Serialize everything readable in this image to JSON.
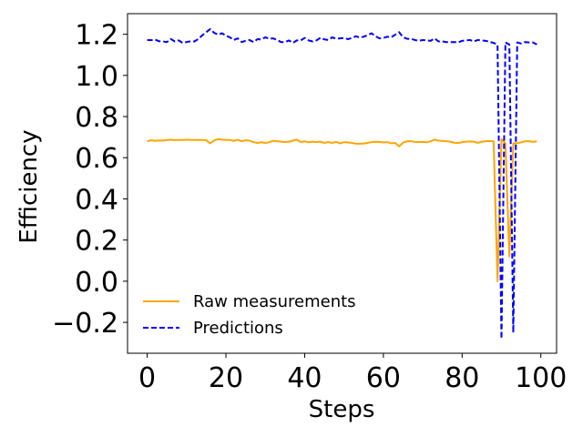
{
  "chart_data": {
    "type": "line",
    "title": "",
    "xlabel": "Steps",
    "ylabel": "Efficiency",
    "xlim": [
      -5,
      104
    ],
    "ylim": [
      -0.35,
      1.3
    ],
    "xticks": [
      0,
      20,
      40,
      60,
      80,
      100
    ],
    "yticks": [
      -0.2,
      0.0,
      0.2,
      0.4,
      0.6,
      0.8,
      1.0,
      1.2
    ],
    "xtick_labels": [
      "0",
      "20",
      "40",
      "60",
      "80",
      "100"
    ],
    "ytick_labels": [
      "−0.2",
      "0.0",
      "0.2",
      "0.4",
      "0.6",
      "0.8",
      "1.0",
      "1.2"
    ],
    "grid": false,
    "legend_position": "lower-left",
    "series": [
      {
        "name": "Raw measurements",
        "color": "#ffa500",
        "style": "solid",
        "x": [
          0,
          1,
          2,
          3,
          4,
          5,
          6,
          7,
          8,
          9,
          10,
          11,
          12,
          13,
          14,
          15,
          16,
          17,
          18,
          19,
          20,
          21,
          22,
          23,
          24,
          25,
          26,
          27,
          28,
          29,
          30,
          31,
          32,
          33,
          34,
          35,
          36,
          37,
          38,
          39,
          40,
          41,
          42,
          43,
          44,
          45,
          46,
          47,
          48,
          49,
          50,
          51,
          52,
          53,
          54,
          55,
          56,
          57,
          58,
          59,
          60,
          61,
          62,
          63,
          64,
          65,
          66,
          67,
          68,
          69,
          70,
          71,
          72,
          73,
          74,
          75,
          76,
          77,
          78,
          79,
          80,
          81,
          82,
          83,
          84,
          85,
          86,
          87,
          88,
          89,
          90,
          91,
          92,
          93,
          94,
          95,
          96,
          97,
          98,
          99
        ],
        "values": [
          0.68,
          0.685,
          0.682,
          0.684,
          0.683,
          0.686,
          0.688,
          0.685,
          0.687,
          0.686,
          0.688,
          0.687,
          0.686,
          0.687,
          0.686,
          0.685,
          0.67,
          0.684,
          0.69,
          0.688,
          0.687,
          0.686,
          0.682,
          0.687,
          0.68,
          0.685,
          0.683,
          0.676,
          0.672,
          0.675,
          0.671,
          0.676,
          0.682,
          0.68,
          0.678,
          0.676,
          0.678,
          0.683,
          0.688,
          0.676,
          0.68,
          0.675,
          0.678,
          0.676,
          0.678,
          0.672,
          0.676,
          0.672,
          0.677,
          0.67,
          0.676,
          0.674,
          0.672,
          0.668,
          0.668,
          0.669,
          0.672,
          0.676,
          0.677,
          0.677,
          0.674,
          0.676,
          0.67,
          0.672,
          0.655,
          0.673,
          0.68,
          0.68,
          0.677,
          0.676,
          0.677,
          0.675,
          0.68,
          0.688,
          0.683,
          0.682,
          0.68,
          0.678,
          0.673,
          0.672,
          0.675,
          0.678,
          0.679,
          0.678,
          0.672,
          0.678,
          0.68,
          0.681,
          0.68,
          0.0,
          0.69,
          0.67,
          0.12,
          0.67,
          0.67,
          0.675,
          0.68,
          0.68,
          0.677,
          0.68
        ]
      },
      {
        "name": "Predictions",
        "color": "#0000ff",
        "style": "dashed",
        "x": [
          0,
          1,
          2,
          3,
          4,
          5,
          6,
          7,
          8,
          9,
          10,
          11,
          12,
          13,
          14,
          15,
          16,
          17,
          18,
          19,
          20,
          21,
          22,
          23,
          24,
          25,
          26,
          27,
          28,
          29,
          30,
          31,
          32,
          33,
          34,
          35,
          36,
          37,
          38,
          39,
          40,
          41,
          42,
          43,
          44,
          45,
          46,
          47,
          48,
          49,
          50,
          51,
          52,
          53,
          54,
          55,
          56,
          57,
          58,
          59,
          60,
          61,
          62,
          63,
          64,
          65,
          66,
          67,
          68,
          69,
          70,
          71,
          72,
          73,
          74,
          75,
          76,
          77,
          78,
          79,
          80,
          81,
          82,
          83,
          84,
          85,
          86,
          87,
          88,
          89,
          90,
          91,
          92,
          93,
          94,
          95,
          96,
          97,
          98,
          99
        ],
        "values": [
          1.172,
          1.171,
          1.174,
          1.166,
          1.165,
          1.162,
          1.177,
          1.165,
          1.17,
          1.158,
          1.162,
          1.166,
          1.165,
          1.177,
          1.195,
          1.21,
          1.225,
          1.207,
          1.198,
          1.205,
          1.193,
          1.185,
          1.172,
          1.18,
          1.162,
          1.168,
          1.172,
          1.162,
          1.176,
          1.175,
          1.185,
          1.178,
          1.18,
          1.172,
          1.162,
          1.162,
          1.17,
          1.158,
          1.17,
          1.17,
          1.182,
          1.17,
          1.165,
          1.17,
          1.183,
          1.175,
          1.172,
          1.185,
          1.178,
          1.18,
          1.182,
          1.176,
          1.182,
          1.19,
          1.184,
          1.188,
          1.195,
          1.205,
          1.19,
          1.18,
          1.182,
          1.188,
          1.185,
          1.198,
          1.21,
          1.185,
          1.178,
          1.178,
          1.172,
          1.168,
          1.172,
          1.17,
          1.168,
          1.18,
          1.165,
          1.165,
          1.162,
          1.162,
          1.162,
          1.16,
          1.168,
          1.17,
          1.172,
          1.165,
          1.172,
          1.17,
          1.168,
          1.163,
          1.158,
          1.15,
          -0.28,
          1.16,
          1.15,
          -0.25,
          1.16,
          1.155,
          1.162,
          1.16,
          1.16,
          1.15
        ]
      }
    ]
  }
}
